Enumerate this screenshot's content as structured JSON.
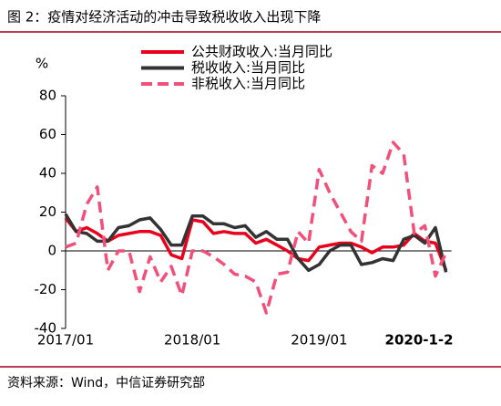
{
  "chart_data": {
    "type": "line",
    "title": "图 2：疫情对经济活动的冲击导致税收收入出现下降",
    "source": "资料来源：Wind，中信证券研究部",
    "y_axis_label": "%",
    "categories": [
      "2017/01",
      null,
      null,
      null,
      null,
      null,
      null,
      null,
      null,
      null,
      null,
      null,
      "2018/01",
      null,
      null,
      null,
      null,
      null,
      null,
      null,
      null,
      null,
      null,
      null,
      "2019/01",
      null,
      null,
      null,
      null,
      null,
      null,
      null,
      null,
      null,
      null,
      null,
      "2020-1-2"
    ],
    "series": [
      {
        "name": "公共财政收入:当月同比",
        "color": "#e8001c",
        "dash": false,
        "values": [
          17,
          10,
          12,
          9,
          5,
          8,
          9,
          10,
          10,
          8,
          -2,
          -4,
          16,
          15,
          9,
          10,
          9,
          9,
          4,
          6,
          3,
          0,
          -4,
          -5,
          2,
          3,
          4,
          4,
          2,
          -1,
          2,
          2,
          3,
          9,
          5,
          4,
          -10
        ]
      },
      {
        "name": "税收收入:当月同比",
        "color": "#333333",
        "dash": false,
        "values": [
          19,
          10,
          9,
          5,
          5,
          12,
          13,
          16,
          17,
          11,
          3,
          3,
          18,
          18,
          14,
          14,
          12,
          13,
          7,
          10,
          6,
          6,
          -4,
          -10,
          -7,
          0,
          3,
          3,
          -7,
          -6,
          -4,
          -5,
          6,
          8,
          4,
          12,
          -11
        ]
      },
      {
        "name": "非税收入:当月同比",
        "color": "#f0507a",
        "dash": true,
        "values": [
          2,
          4,
          24,
          33,
          -10,
          0,
          0,
          -21,
          -3,
          -16,
          -8,
          -23,
          0,
          0,
          -3,
          -7,
          -12,
          -13,
          -16,
          -32,
          -12,
          -11,
          10,
          4,
          42,
          30,
          20,
          10,
          5,
          44,
          40,
          56,
          50,
          9,
          13,
          -13,
          -1
        ]
      }
    ],
    "ylim": [
      -40,
      80
    ],
    "yticks": [
      -40,
      -20,
      0,
      20,
      40,
      60,
      80
    ],
    "legend": "top"
  }
}
